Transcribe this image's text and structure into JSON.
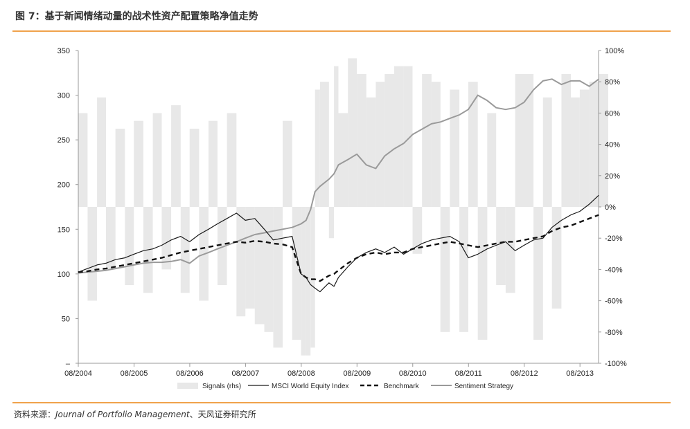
{
  "header": {
    "title": "图 7：基于新闻情绪动量的战术性资产配置策略净值走势"
  },
  "footer": {
    "source_prefix": "资料来源：",
    "source_italic": "Journal of Portfolio Management",
    "source_suffix": "、天风证券研究所"
  },
  "colors": {
    "accent": "#f0a24b",
    "signals": "#e8e8e8",
    "msci": "#1a1a1a",
    "benchmark": "#111111",
    "sentiment": "#9a9a9a"
  },
  "chart_data": {
    "type": "line",
    "x_ticks": [
      "08/2004",
      "08/2005",
      "08/2006",
      "08/2007",
      "08/2008",
      "08/2009",
      "08/2010",
      "08/2011",
      "08/2012",
      "08/2013"
    ],
    "xlim": [
      "08/2004",
      "12/2013"
    ],
    "y_left": {
      "ticks": [
        "–",
        "50",
        "100",
        "150",
        "200",
        "250",
        "300",
        "350"
      ],
      "lim": [
        0,
        350
      ]
    },
    "y_right": {
      "ticks": [
        "-100%",
        "-80%",
        "-60%",
        "-40%",
        "-20%",
        "0%",
        "20%",
        "40%",
        "60%",
        "80%",
        "100%"
      ],
      "lim": [
        -100,
        100
      ]
    },
    "grid": false,
    "legend_position": "bottom",
    "legend": [
      "Signals (rhs)",
      "MSCI World Equity Index",
      "Benchmark",
      "Sentiment Strategy"
    ],
    "x": [
      2004.58,
      2004.75,
      2004.92,
      2005.08,
      2005.25,
      2005.42,
      2005.58,
      2005.75,
      2005.92,
      2006.08,
      2006.25,
      2006.42,
      2006.58,
      2006.75,
      2006.92,
      2007.08,
      2007.25,
      2007.42,
      2007.58,
      2007.75,
      2007.92,
      2008.08,
      2008.25,
      2008.42,
      2008.58,
      2008.67,
      2008.75,
      2008.83,
      2008.92,
      2009.08,
      2009.17,
      2009.25,
      2009.42,
      2009.58,
      2009.75,
      2009.92,
      2010.08,
      2010.25,
      2010.42,
      2010.58,
      2010.75,
      2010.92,
      2011.08,
      2011.25,
      2011.42,
      2011.58,
      2011.75,
      2011.92,
      2012.08,
      2012.25,
      2012.42,
      2012.58,
      2012.75,
      2012.92,
      2013.08,
      2013.25,
      2013.42,
      2013.58,
      2013.75,
      2013.92
    ],
    "series": [
      {
        "name": "MSCI World Equity Index",
        "values": [
          102,
          106,
          110,
          112,
          116,
          118,
          122,
          126,
          128,
          132,
          138,
          142,
          136,
          144,
          150,
          156,
          162,
          168,
          160,
          162,
          150,
          138,
          140,
          142,
          100,
          96,
          88,
          84,
          80,
          90,
          86,
          96,
          108,
          118,
          124,
          128,
          124,
          130,
          122,
          128,
          134,
          138,
          140,
          142,
          136,
          118,
          122,
          128,
          132,
          136,
          126,
          132,
          138,
          140,
          152,
          160,
          166,
          170,
          178,
          188
        ]
      },
      {
        "name": "Benchmark",
        "values": [
          102,
          103,
          105,
          106,
          108,
          110,
          112,
          114,
          116,
          118,
          121,
          124,
          126,
          128,
          130,
          132,
          134,
          136,
          135,
          137,
          136,
          134,
          133,
          130,
          100,
          96,
          94,
          94,
          92,
          98,
          100,
          104,
          112,
          118,
          122,
          124,
          122,
          124,
          124,
          128,
          130,
          132,
          134,
          136,
          134,
          132,
          130,
          132,
          134,
          136,
          136,
          138,
          140,
          142,
          148,
          152,
          154,
          158,
          162,
          166
        ]
      },
      {
        "name": "Sentiment Strategy",
        "values": [
          101,
          102,
          103,
          104,
          106,
          108,
          110,
          112,
          113,
          113,
          114,
          116,
          112,
          120,
          124,
          128,
          132,
          136,
          140,
          144,
          146,
          148,
          150,
          152,
          156,
          160,
          172,
          192,
          198,
          206,
          212,
          222,
          228,
          234,
          222,
          218,
          232,
          240,
          246,
          256,
          262,
          268,
          270,
          274,
          278,
          284,
          300,
          294,
          286,
          284,
          286,
          292,
          306,
          316,
          318,
          312,
          316,
          316,
          310,
          318
        ]
      },
      {
        "name": "Signals (rhs)",
        "values": [
          60,
          -60,
          70,
          -40,
          50,
          -50,
          55,
          -55,
          60,
          -40,
          65,
          -55,
          50,
          -60,
          55,
          -50,
          60,
          -70,
          -65,
          -75,
          -80,
          -90,
          55,
          -85,
          -95,
          -95,
          -90,
          75,
          80,
          -20,
          90,
          60,
          95,
          85,
          70,
          80,
          85,
          90,
          90,
          -30,
          85,
          80,
          -80,
          75,
          -80,
          80,
          -85,
          60,
          -50,
          -55,
          85,
          85,
          -85,
          70,
          -65,
          85,
          70,
          75,
          80,
          85
        ]
      }
    ]
  }
}
